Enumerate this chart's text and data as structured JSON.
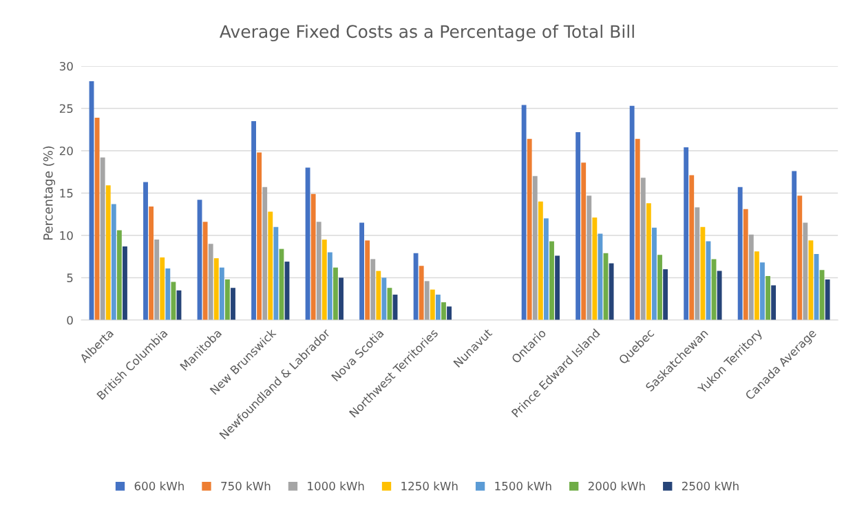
{
  "chart_data": {
    "type": "bar",
    "title": "Average Fixed Costs as a Percentage of Total Bill",
    "ylabel": "Percentage (%)",
    "categories": [
      "Alberta",
      "British Columbia",
      "Manitoba",
      "New Brunswick",
      "Newfoundland & Labrador",
      "Nova Scotia",
      "Northwest Territories",
      "Nunavut",
      "Ontario",
      "Prince Edward Island",
      "Quebec",
      "Saskatchewan",
      "Yukon Territory",
      "Canada Average"
    ],
    "series": [
      {
        "name": "600 kWh",
        "color": "#4472c4",
        "values": [
          28.2,
          16.3,
          14.2,
          23.5,
          18.0,
          11.5,
          7.9,
          null,
          25.4,
          22.2,
          25.3,
          20.4,
          15.7,
          17.6
        ]
      },
      {
        "name": "750 kWh",
        "color": "#ed7d31",
        "values": [
          23.9,
          13.4,
          11.6,
          19.8,
          14.9,
          9.4,
          6.4,
          null,
          21.4,
          18.6,
          21.4,
          17.1,
          13.1,
          14.7
        ]
      },
      {
        "name": "1000 kWh",
        "color": "#a5a5a5",
        "values": [
          19.2,
          9.5,
          9.0,
          15.7,
          11.6,
          7.2,
          4.6,
          null,
          17.0,
          14.7,
          16.8,
          13.3,
          10.1,
          11.5
        ]
      },
      {
        "name": "1250 kWh",
        "color": "#ffc000",
        "values": [
          15.9,
          7.4,
          7.3,
          12.8,
          9.5,
          5.8,
          3.6,
          null,
          14.0,
          12.1,
          13.8,
          11.0,
          8.1,
          9.4
        ]
      },
      {
        "name": "1500 kWh",
        "color": "#5b9bd5",
        "values": [
          13.7,
          6.1,
          6.2,
          11.0,
          8.0,
          5.0,
          3.0,
          null,
          12.0,
          10.2,
          10.9,
          9.3,
          6.8,
          7.8
        ]
      },
      {
        "name": "2000 kWh",
        "color": "#70ad47",
        "values": [
          10.6,
          4.5,
          4.8,
          8.4,
          6.2,
          3.8,
          2.1,
          null,
          9.3,
          7.9,
          7.7,
          7.2,
          5.2,
          5.9
        ]
      },
      {
        "name": "2500 kWh",
        "color": "#264478",
        "values": [
          8.7,
          3.5,
          3.8,
          6.9,
          5.0,
          3.0,
          1.6,
          null,
          7.6,
          6.7,
          6.0,
          5.8,
          4.1,
          4.8
        ]
      }
    ],
    "ylim": [
      0,
      30
    ],
    "yticks": [
      0,
      5,
      10,
      15,
      20,
      25,
      30
    ],
    "grid": "y",
    "legend": "bottom"
  }
}
